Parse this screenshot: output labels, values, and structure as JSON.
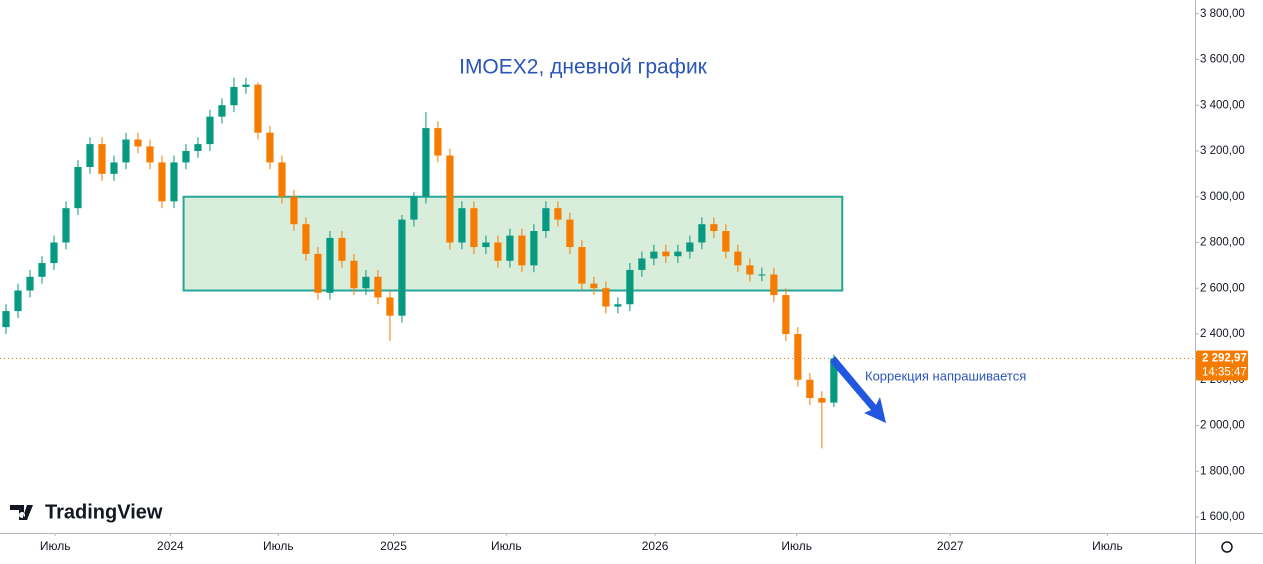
{
  "chart_data": {
    "type": "candlestick",
    "title": "IMOEX2, дневной график",
    "logo": "TradingView",
    "annotation": "Коррекция напрашивается",
    "up_color": "#089981",
    "down_color": "#f57c00",
    "zone": {
      "xmin": 15.3,
      "xmax": 70.2,
      "ymin": 2590,
      "ymax": 3000,
      "color": "#d8eedb",
      "border": "#26a69a"
    },
    "last_price": {
      "value": 2292.97,
      "label": "2 292,97"
    },
    "timer": "14:35:47",
    "open": [
      2430,
      2500,
      2590,
      2650,
      2710,
      2800,
      2950,
      3130,
      3230,
      3100,
      3150,
      3250,
      3220,
      3150,
      2980,
      3150,
      3200,
      3230,
      3350,
      3400,
      3480,
      3490,
      3280,
      3150,
      3000,
      2880,
      2750,
      2580,
      2820,
      2720,
      2600,
      2650,
      2560,
      2480,
      2900,
      3000,
      3300,
      3180,
      2800,
      2950,
      2780,
      2800,
      2720,
      2830,
      2700,
      2850,
      2950,
      2900,
      2780,
      2620,
      2600,
      2520,
      2530,
      2680,
      2730,
      2760,
      2740,
      2760,
      2800,
      2880,
      2850,
      2760,
      2700,
      2660,
      2660,
      2570,
      2400,
      2200,
      2120,
      2100
    ],
    "high": [
      2530,
      2620,
      2680,
      2740,
      2830,
      2980,
      3160,
      3260,
      3260,
      3180,
      3280,
      3280,
      3250,
      3180,
      3180,
      3230,
      3260,
      3380,
      3430,
      3520,
      3520,
      3500,
      3310,
      3180,
      3030,
      2910,
      2780,
      2850,
      2850,
      2750,
      2680,
      2680,
      2590,
      2920,
      3020,
      3370,
      3330,
      3210,
      2980,
      2980,
      2830,
      2830,
      2860,
      2860,
      2880,
      2980,
      2980,
      2930,
      2810,
      2650,
      2630,
      2560,
      2710,
      2760,
      2790,
      2790,
      2790,
      2830,
      2910,
      2910,
      2880,
      2790,
      2730,
      2690,
      2690,
      2600,
      2430,
      2230,
      2150,
      2310
    ],
    "low": [
      2400,
      2470,
      2560,
      2620,
      2680,
      2770,
      2920,
      3100,
      3070,
      3070,
      3120,
      3190,
      3120,
      2950,
      2950,
      3120,
      3170,
      3200,
      3320,
      3370,
      3450,
      3250,
      3120,
      2970,
      2850,
      2720,
      2550,
      2550,
      2690,
      2570,
      2570,
      2530,
      2370,
      2450,
      2870,
      2970,
      3150,
      2770,
      2770,
      2750,
      2750,
      2690,
      2690,
      2670,
      2670,
      2820,
      2870,
      2750,
      2590,
      2570,
      2490,
      2490,
      2500,
      2650,
      2700,
      2710,
      2710,
      2730,
      2770,
      2820,
      2730,
      2670,
      2630,
      2630,
      2540,
      2370,
      2170,
      2090,
      1900,
      2080
    ],
    "close": [
      2500,
      2590,
      2650,
      2710,
      2800,
      2950,
      3130,
      3230,
      3100,
      3150,
      3250,
      3220,
      3150,
      2980,
      3150,
      3200,
      3230,
      3350,
      3400,
      3480,
      3490,
      3280,
      3150,
      3000,
      2880,
      2750,
      2580,
      2820,
      2720,
      2600,
      2650,
      2560,
      2480,
      2900,
      3000,
      3300,
      3180,
      2800,
      2950,
      2780,
      2800,
      2720,
      2830,
      2700,
      2850,
      2950,
      2900,
      2780,
      2620,
      2600,
      2520,
      2530,
      2680,
      2730,
      2760,
      2740,
      2760,
      2800,
      2880,
      2850,
      2760,
      2700,
      2660,
      2660,
      2570,
      2400,
      2200,
      2120,
      2100,
      2293
    ],
    "xlim": [
      0,
      99.6
    ],
    "xticks": [
      {
        "value": 4.6,
        "label": "Июль"
      },
      {
        "value": 14.2,
        "label": "2024"
      },
      {
        "value": 23.2,
        "label": "Июль"
      },
      {
        "value": 32.8,
        "label": "2025"
      },
      {
        "value": 42.2,
        "label": "Июль"
      },
      {
        "value": 54.6,
        "label": "2026"
      },
      {
        "value": 66.4,
        "label": "Июль"
      },
      {
        "value": 79.2,
        "label": "2027"
      },
      {
        "value": 92.3,
        "label": "Июль"
      }
    ],
    "ylim": [
      1530,
      3860
    ],
    "yticks": [
      {
        "value": 1600,
        "label": "1 600,00"
      },
      {
        "value": 1800,
        "label": "1 800,00"
      },
      {
        "value": 2000,
        "label": "2 000,00"
      },
      {
        "value": 2200,
        "label": "2 200,00"
      },
      {
        "value": 2400,
        "label": "2 400,00"
      },
      {
        "value": 2600,
        "label": "2 600,00"
      },
      {
        "value": 2800,
        "label": "2 800,00"
      },
      {
        "value": 3000,
        "label": "3 000,00"
      },
      {
        "value": 3200,
        "label": "3 200,00"
      },
      {
        "value": 3400,
        "label": "3 400,00"
      },
      {
        "value": 3600,
        "label": "3 600,00"
      },
      {
        "value": 3800,
        "label": "3 800,00"
      }
    ]
  }
}
